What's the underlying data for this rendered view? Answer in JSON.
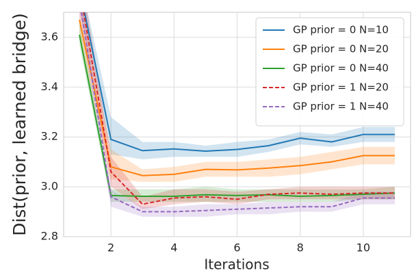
{
  "chart_data": {
    "type": "line",
    "x_label": "Iterations",
    "y_label": "Dist(prior, learned bridge)",
    "x": [
      1,
      2,
      3,
      4,
      5,
      6,
      7,
      8,
      9,
      10,
      11
    ],
    "xlim": [
      0.5,
      11.5
    ],
    "xticks": [
      2,
      4,
      6,
      8,
      10
    ],
    "ylim": [
      2.8,
      3.7
    ],
    "yticks": [
      2.8,
      3.0,
      3.2,
      3.4,
      3.6
    ],
    "grid": true,
    "legend": "upper right",
    "series": [
      {
        "name": "GP prior = 0 N=10",
        "color": "#1f77b4",
        "dash": false,
        "values": [
          3.8,
          3.19,
          3.145,
          3.152,
          3.143,
          3.15,
          3.165,
          3.195,
          3.18,
          3.21,
          3.21
        ],
        "lower": [
          3.75,
          3.13,
          3.11,
          3.12,
          3.12,
          3.12,
          3.14,
          3.17,
          3.16,
          3.18,
          3.18
        ],
        "upper": [
          3.85,
          3.28,
          3.18,
          3.18,
          3.165,
          3.18,
          3.19,
          3.22,
          3.21,
          3.24,
          3.24
        ]
      },
      {
        "name": "GP prior = 0 N=20",
        "color": "#ff7f0e",
        "dash": false,
        "values": [
          3.67,
          3.08,
          3.045,
          3.05,
          3.07,
          3.068,
          3.075,
          3.085,
          3.1,
          3.125,
          3.125
        ],
        "lower": [
          3.6,
          3.03,
          3.02,
          3.02,
          3.04,
          3.04,
          3.04,
          3.05,
          3.07,
          3.09,
          3.09
        ],
        "upper": [
          3.75,
          3.15,
          3.07,
          3.08,
          3.1,
          3.1,
          3.11,
          3.12,
          3.14,
          3.16,
          3.16
        ]
      },
      {
        "name": "GP prior = 0 N=40",
        "color": "#2ca02c",
        "dash": false,
        "values": [
          3.61,
          2.965,
          2.962,
          2.962,
          2.968,
          2.965,
          2.968,
          2.962,
          2.965,
          2.97,
          2.975
        ],
        "lower": [
          3.57,
          2.94,
          2.94,
          2.94,
          2.94,
          2.94,
          2.94,
          2.94,
          2.94,
          2.95,
          2.95
        ],
        "upper": [
          3.66,
          2.99,
          2.99,
          2.99,
          3.0,
          2.99,
          2.99,
          2.99,
          2.99,
          2.99,
          3.0
        ]
      },
      {
        "name": "GP prior = 1 N=20",
        "color": "#d62728",
        "dash": true,
        "values": [
          3.8,
          3.06,
          2.93,
          2.955,
          2.96,
          2.95,
          2.97,
          2.975,
          2.97,
          2.975,
          2.975
        ],
        "lower": [
          3.72,
          3.0,
          2.91,
          2.93,
          2.94,
          2.93,
          2.95,
          2.95,
          2.95,
          2.95,
          2.95
        ],
        "upper": [
          3.9,
          3.12,
          2.96,
          2.99,
          2.99,
          2.98,
          2.99,
          3.0,
          3.0,
          3.0,
          3.0
        ]
      },
      {
        "name": "GP prior = 1 N=40",
        "color": "#9467bd",
        "dash": true,
        "values": [
          3.75,
          2.96,
          2.9,
          2.9,
          2.905,
          2.91,
          2.915,
          2.92,
          2.92,
          2.955,
          2.955
        ],
        "lower": [
          3.68,
          2.92,
          2.88,
          2.88,
          2.88,
          2.89,
          2.89,
          2.9,
          2.9,
          2.93,
          2.93
        ],
        "upper": [
          3.82,
          2.99,
          2.92,
          2.92,
          2.93,
          2.93,
          2.94,
          2.94,
          2.94,
          2.98,
          2.98
        ]
      }
    ]
  }
}
